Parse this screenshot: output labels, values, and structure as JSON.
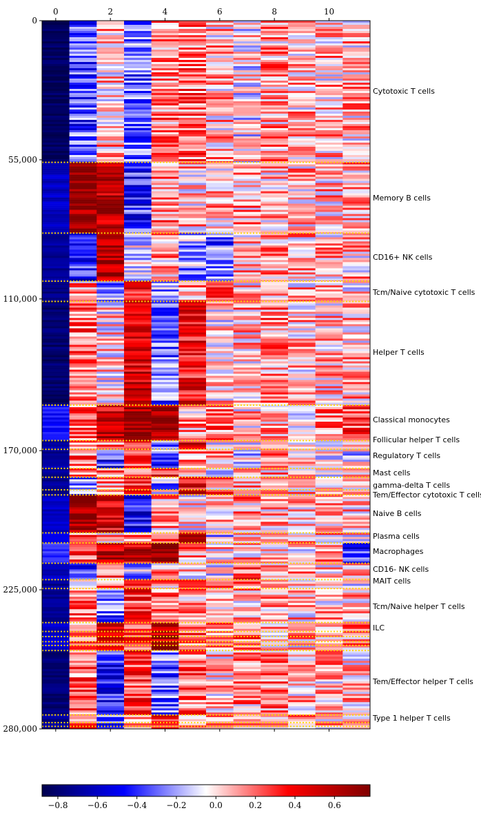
{
  "chart_data": {
    "type": "heatmap",
    "title": "",
    "xlabel": "",
    "ylabel": "",
    "n_columns": 12,
    "x_ticks": [
      0,
      2,
      4,
      6,
      8,
      10
    ],
    "x_tick_labels": [
      "0",
      "2",
      "4",
      "6",
      "8",
      "10"
    ],
    "y_ticks": [
      0,
      55000,
      110000,
      170000,
      225000,
      280000
    ],
    "y_tick_labels": [
      "0",
      "55,000",
      "110,000",
      "170,000",
      "225,000",
      "280,000"
    ],
    "ylim": [
      0,
      280000
    ],
    "colorbar": {
      "vmin": -0.88,
      "vmax": 0.78,
      "ticks": [
        -0.8,
        -0.6,
        -0.4,
        -0.2,
        0.0,
        0.2,
        0.4,
        0.6
      ],
      "tick_labels": [
        "−0.8",
        "−0.6",
        "−0.4",
        "−0.2",
        "0.0",
        "0.2",
        "0.4",
        "0.6"
      ],
      "colormap": "seismic"
    },
    "separator_color": "#ffd700",
    "clusters": [
      {
        "label": "Cytotoxic T cells",
        "start": 0,
        "end": 56000,
        "means": [
          -0.85,
          -0.35,
          0.05,
          -0.3,
          0.15,
          0.2,
          0.05,
          -0.05,
          0.1,
          0.05,
          0.05,
          0.05
        ]
      },
      {
        "label": "Memory B cells",
        "start": 56000,
        "end": 84000,
        "means": [
          -0.6,
          0.72,
          0.6,
          -0.4,
          0.15,
          0.05,
          0.05,
          0.1,
          0.05,
          0.05,
          0.05,
          0.1
        ]
      },
      {
        "label": "CD16+ NK cells",
        "start": 84000,
        "end": 103000,
        "means": [
          -0.7,
          -0.45,
          0.6,
          -0.1,
          0.1,
          -0.2,
          -0.3,
          0.05,
          0.1,
          0.05,
          0.05,
          0.05
        ]
      },
      {
        "label": "Tcm/Naive cytotoxic T cells",
        "start": 103000,
        "end": 111000,
        "means": [
          -0.75,
          0.1,
          -0.2,
          0.4,
          -0.2,
          0.1,
          0.2,
          0.0,
          0.05,
          0.05,
          0.05,
          0.0
        ]
      },
      {
        "label": "Helper T cells",
        "start": 111000,
        "end": 152000,
        "means": [
          -0.8,
          0.2,
          0.0,
          0.5,
          -0.3,
          0.4,
          0.0,
          0.05,
          0.15,
          0.05,
          0.05,
          0.05
        ]
      },
      {
        "label": "Classical monocytes",
        "start": 152000,
        "end": 166000,
        "means": [
          -0.45,
          0.2,
          0.55,
          0.7,
          0.65,
          0.1,
          0.15,
          0.05,
          0.05,
          0.0,
          0.15,
          0.3
        ]
      },
      {
        "label": "Follicular helper T cells",
        "start": 166000,
        "end": 169500,
        "means": [
          -0.7,
          0.2,
          0.2,
          0.4,
          -0.2,
          0.5,
          0.0,
          -0.1,
          0.1,
          0.05,
          0.05,
          0.0
        ]
      },
      {
        "label": "Regulatory T cells",
        "start": 169500,
        "end": 177000,
        "means": [
          -0.7,
          0.2,
          -0.4,
          0.3,
          -0.3,
          0.1,
          0.1,
          -0.1,
          0.2,
          0.0,
          0.0,
          -0.1
        ]
      },
      {
        "label": "Mast cells",
        "start": 177000,
        "end": 180500,
        "means": [
          -0.7,
          0.1,
          0.2,
          0.3,
          0.4,
          0.1,
          0.0,
          0.1,
          0.1,
          0.0,
          0.0,
          0.0
        ]
      },
      {
        "label": "gamma-delta T cells",
        "start": 180500,
        "end": 185500,
        "means": [
          -0.7,
          -0.3,
          0.1,
          0.3,
          -0.2,
          0.4,
          0.1,
          0.05,
          0.05,
          0.05,
          0.05,
          0.0
        ]
      },
      {
        "label": "Tem/Effector cytotoxic T cells",
        "start": 185500,
        "end": 187500,
        "means": [
          -0.7,
          -0.2,
          0.1,
          0.3,
          0.0,
          0.5,
          0.4,
          0.05,
          0.1,
          0.05,
          0.05,
          0.05
        ]
      },
      {
        "label": "Naive B cells",
        "start": 187500,
        "end": 202500,
        "means": [
          -0.6,
          0.7,
          0.5,
          -0.45,
          0.1,
          0.0,
          0.05,
          0.1,
          0.05,
          0.05,
          0.1,
          0.05
        ]
      },
      {
        "label": "Plasma cells",
        "start": 202500,
        "end": 206500,
        "means": [
          -0.5,
          0.2,
          0.1,
          0.2,
          0.1,
          0.7,
          -0.2,
          0.1,
          0.05,
          0.05,
          0.05,
          0.0
        ]
      },
      {
        "label": "Macrophages",
        "start": 206500,
        "end": 214500,
        "means": [
          -0.4,
          0.3,
          0.6,
          0.5,
          0.7,
          0.1,
          0.0,
          0.05,
          0.05,
          0.0,
          0.1,
          -0.4
        ]
      },
      {
        "label": "CD16- NK cells",
        "start": 214500,
        "end": 221000,
        "means": [
          -0.6,
          -0.4,
          0.2,
          -0.2,
          0.1,
          0.0,
          -0.1,
          0.3,
          0.1,
          0.05,
          0.05,
          0.05
        ]
      },
      {
        "label": "MAIT cells",
        "start": 221000,
        "end": 224500,
        "means": [
          -0.7,
          -0.1,
          0.1,
          0.2,
          0.1,
          0.2,
          0.1,
          0.1,
          0.05,
          0.05,
          0.05,
          0.0
        ]
      },
      {
        "label": "Tcm/Naive helper T cells",
        "start": 224500,
        "end": 238000,
        "means": [
          -0.7,
          0.2,
          -0.3,
          0.3,
          0.2,
          0.1,
          0.05,
          0.05,
          0.1,
          0.05,
          0.05,
          0.05
        ]
      },
      {
        "label": "ILC",
        "start": 238000,
        "end": 249000,
        "means": [
          -0.6,
          0.2,
          0.4,
          0.3,
          0.6,
          0.2,
          0.1,
          0.2,
          0.1,
          0.05,
          0.1,
          0.1
        ]
      },
      {
        "label": "Tem/Effector helper T cells",
        "start": 249000,
        "end": 274500,
        "means": [
          -0.8,
          0.2,
          -0.4,
          0.3,
          -0.3,
          0.2,
          0.05,
          0.1,
          0.15,
          0.05,
          0.05,
          0.05
        ]
      },
      {
        "label": "Type 1 helper T cells",
        "start": 274500,
        "end": 280000,
        "means": [
          -0.7,
          0.2,
          -0.3,
          0.2,
          0.3,
          0.2,
          0.1,
          0.1,
          0.1,
          0.05,
          0.05,
          0.05
        ]
      }
    ],
    "thin_band_boundaries": [
      241500,
      243500,
      245500,
      247000,
      277500,
      279000
    ]
  }
}
